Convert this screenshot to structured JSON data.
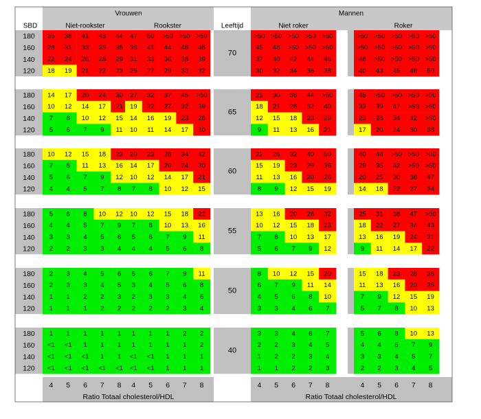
{
  "chart_data": {
    "type": "heatmap",
    "header": {
      "women": "Vrouwen",
      "men": "Mannen",
      "age_label": "Leeftijd",
      "sbp_label": "SBD",
      "women_nonsmoker": "Niet-rookster",
      "women_smoker": "Rookster",
      "men_nonsmoker": "Niet roker",
      "men_smoker": "Roker"
    },
    "x_ticks": [
      "4",
      "5",
      "6",
      "7",
      "8"
    ],
    "x_label": "Ratio Totaal cholesterol/HDL",
    "sbp_levels": [
      "180",
      "160",
      "140",
      "120"
    ],
    "colors": {
      "red": "#ff0000",
      "yellow": "#ffff00",
      "green": "#00ee00",
      "gray": "#c0c0c0",
      "header": "#c8c8c8"
    },
    "blocks": [
      {
        "age": "70",
        "women_nonsmoker": [
          [
            "35",
            "38",
            "41",
            "43",
            "44"
          ],
          [
            "28",
            "31",
            "33",
            "35",
            "38"
          ],
          [
            "22",
            "24",
            "26",
            "28",
            "29"
          ],
          [
            "18",
            "19",
            "21",
            "22",
            "23"
          ]
        ],
        "women_smoker": [
          [
            "47",
            "50",
            ">50",
            ">50",
            ">50"
          ],
          [
            "38",
            "41",
            "44",
            "46",
            "48"
          ],
          [
            "31",
            "33",
            "36",
            "38",
            "39"
          ],
          [
            "25",
            "27",
            "29",
            "30",
            "32"
          ]
        ],
        "men_nonsmoker": [
          [
            ">50",
            ">50",
            ">50",
            ">50",
            ">50"
          ],
          [
            "45",
            "48",
            ">50",
            ">50",
            ">50"
          ],
          [
            "37",
            "40",
            "42",
            "44",
            "46"
          ],
          [
            "30",
            "32",
            "34",
            "36",
            "38"
          ]
        ],
        "men_smoker": [
          [
            ">50",
            ">50",
            ">50",
            ">50",
            ">50"
          ],
          [
            ">50",
            ">50",
            ">50",
            ">50",
            ">50"
          ],
          [
            "48",
            ">50",
            ">50",
            ">50",
            ">50"
          ],
          [
            "40",
            "43",
            "45",
            "48",
            "50"
          ]
        ]
      },
      {
        "age": "65",
        "women_nonsmoker": [
          [
            "14",
            "17",
            "20",
            "24",
            "30"
          ],
          [
            "10",
            "12",
            "14",
            "17",
            "21"
          ],
          [
            "7",
            "8",
            "10",
            "12",
            "15"
          ],
          [
            "5",
            "6",
            "7",
            "9",
            "11"
          ]
        ],
        "women_smoker": [
          [
            "27",
            "32",
            "37",
            "45",
            ">50"
          ],
          [
            "19",
            "22",
            "27",
            "32",
            "39"
          ],
          [
            "14",
            "16",
            "19",
            "23",
            "28"
          ],
          [
            "10",
            "11",
            "14",
            "17",
            "20"
          ]
        ],
        "men_nonsmoker": [
          [
            "25",
            "30",
            "36",
            "44",
            ">50"
          ],
          [
            "18",
            "21",
            "26",
            "32",
            "40"
          ],
          [
            "12",
            "15",
            "18",
            "23",
            "29"
          ],
          [
            "9",
            "11",
            "13",
            "16",
            "21"
          ]
        ],
        "men_smoker": [
          [
            "45",
            ">50",
            ">50",
            ">50",
            ">50"
          ],
          [
            "33",
            "39",
            "47",
            ">50",
            ">50"
          ],
          [
            "23",
            "28",
            "34",
            "42",
            ">50"
          ],
          [
            "17",
            "20",
            "24",
            "30",
            "38"
          ]
        ]
      },
      {
        "age": "60",
        "women_nonsmoker": [
          [
            "10",
            "12",
            "15",
            "18",
            "23"
          ],
          [
            "7",
            "8",
            "11",
            "13",
            "16"
          ],
          [
            "5",
            "6",
            "7",
            "9",
            "12"
          ],
          [
            "4",
            "4",
            "5",
            "7",
            "8"
          ]
        ],
        "women_smoker": [
          [
            "20",
            "23",
            "28",
            "34",
            "42"
          ],
          [
            "14",
            "17",
            "20",
            "24",
            "30"
          ],
          [
            "10",
            "12",
            "14",
            "17",
            "21"
          ],
          [
            "7",
            "8",
            "10",
            "12",
            "15"
          ]
        ],
        "men_nonsmoker": [
          [
            "22",
            "26",
            "32",
            "40",
            "50"
          ],
          [
            "15",
            "19",
            "23",
            "29",
            "36"
          ],
          [
            "11",
            "13",
            "16",
            "20",
            "26"
          ],
          [
            "8",
            "9",
            "12",
            "15",
            "19"
          ]
        ],
        "men_smoker": [
          [
            "40",
            "48",
            ">50",
            ">50",
            ">50"
          ],
          [
            "29",
            "35",
            "42",
            ">50",
            ">50"
          ],
          [
            "20",
            "25",
            "30",
            "38",
            "47"
          ],
          [
            "14",
            "18",
            "22",
            "27",
            "34"
          ]
        ]
      },
      {
        "age": "55",
        "women_nonsmoker": [
          [
            "5",
            "6",
            "8",
            "10",
            "12"
          ],
          [
            "4",
            "4",
            "5",
            "7",
            "9"
          ],
          [
            "3",
            "3",
            "4",
            "5",
            "6"
          ],
          [
            "2",
            "2",
            "3",
            "3",
            "4"
          ]
        ],
        "women_smoker": [
          [
            "10",
            "12",
            "15",
            "18",
            "22"
          ],
          [
            "7",
            "8",
            "10",
            "13",
            "16"
          ],
          [
            "5",
            "6",
            "7",
            "9",
            "11"
          ],
          [
            "4",
            "4",
            "5",
            "6",
            "8"
          ]
        ],
        "men_nonsmoker": [
          [
            "13",
            "16",
            "20",
            "26",
            "32"
          ],
          [
            "10",
            "12",
            "15",
            "18",
            "23"
          ],
          [
            "7",
            "8",
            "10",
            "13",
            "17"
          ],
          [
            "5",
            "6",
            "7",
            "9",
            "12"
          ]
        ],
        "men_smoker": [
          [
            "25",
            "31",
            "38",
            "47",
            ">50"
          ],
          [
            "18",
            "22",
            "27",
            "34",
            "43"
          ],
          [
            "13",
            "16",
            "19",
            "24",
            "31"
          ],
          [
            "9",
            "11",
            "14",
            "17",
            "22"
          ]
        ]
      },
      {
        "age": "50",
        "women_nonsmoker": [
          [
            "2",
            "3",
            "4",
            "5",
            "6"
          ],
          [
            "2",
            "3",
            "3",
            "4",
            "5"
          ],
          [
            "1",
            "1",
            "2",
            "2",
            "3"
          ],
          [
            "1",
            "1",
            "1",
            "2",
            "2"
          ]
        ],
        "women_smoker": [
          [
            "5",
            "6",
            "7",
            "9",
            "11"
          ],
          [
            "3",
            "4",
            "5",
            "6",
            "8"
          ],
          [
            "2",
            "3",
            "3",
            "4",
            "6"
          ],
          [
            "2",
            "2",
            "2",
            "3",
            "4"
          ]
        ],
        "men_nonsmoker": [
          [
            "8",
            "10",
            "12",
            "15",
            "20"
          ],
          [
            "6",
            "7",
            "9",
            "11",
            "14"
          ],
          [
            "4",
            "5",
            "6",
            "8",
            "10"
          ],
          [
            "3",
            "3",
            "4",
            "6",
            "7"
          ]
        ],
        "men_smoker": [
          [
            "15",
            "18",
            "23",
            "28",
            "36"
          ],
          [
            "11",
            "13",
            "16",
            "20",
            "26"
          ],
          [
            "7",
            "9",
            "12",
            "15",
            "19"
          ],
          [
            "5",
            "7",
            "8",
            "10",
            "13"
          ]
        ]
      },
      {
        "age": "40",
        "women_nonsmoker": [
          [
            "1",
            "1",
            "1",
            "1",
            "1"
          ],
          [
            "<1",
            "<1",
            "1",
            "1",
            "1"
          ],
          [
            "<1",
            "<1",
            "<1",
            "1",
            "1"
          ],
          [
            "<1",
            "<1",
            "<1",
            "<1",
            "<1"
          ]
        ],
        "women_smoker": [
          [
            "1",
            "1",
            "1",
            "2",
            "2"
          ],
          [
            "1",
            "1",
            "1",
            "1",
            "2"
          ],
          [
            "<1",
            "<1",
            "1",
            "1",
            "1"
          ],
          [
            "<1",
            "<1",
            "1",
            "1",
            "1"
          ]
        ],
        "men_nonsmoker": [
          [
            "3",
            "3",
            "4",
            "6",
            "7"
          ],
          [
            "2",
            "2",
            "3",
            "4",
            "5"
          ],
          [
            "1",
            "2",
            "2",
            "3",
            "4"
          ],
          [
            "1",
            "1",
            "2",
            "2",
            "3"
          ]
        ],
        "men_smoker": [
          [
            "5",
            "6",
            "8",
            "10",
            "13"
          ],
          [
            "4",
            "4",
            "6",
            "7",
            "9"
          ],
          [
            "3",
            "3",
            "4",
            "5",
            "7"
          ],
          [
            "2",
            "2",
            "3",
            "4",
            "5"
          ]
        ]
      }
    ]
  }
}
